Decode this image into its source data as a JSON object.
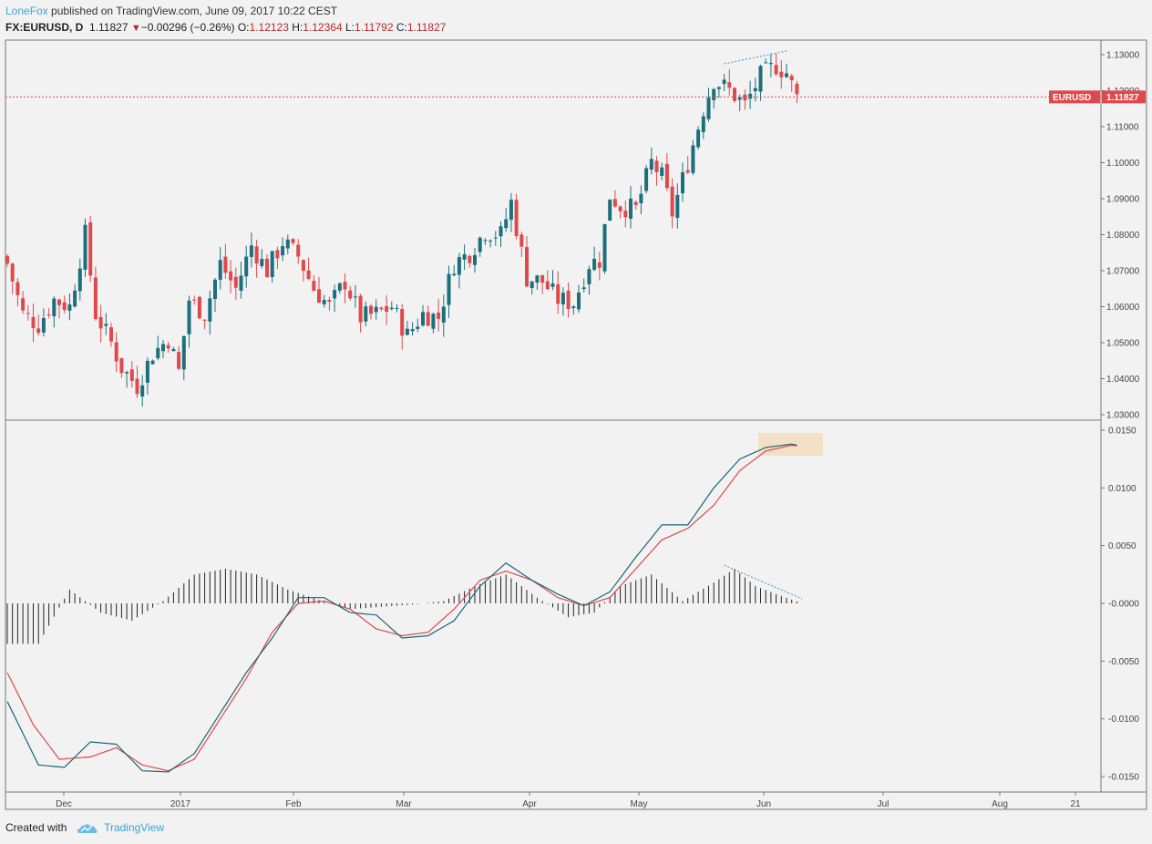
{
  "header": {
    "author": "LoneFox",
    "published_text": "published on TradingView.com, June 09, 2017 10:22 CEST",
    "symbol": "FX:EURUSD, D",
    "last": "1.11827",
    "change": "−0.00296 (−0.26%)",
    "open_label": "O:",
    "open": "1.12123",
    "high_label": "H:",
    "high": "1.12364",
    "low_label": "L:",
    "low": "1.11792",
    "close_label": "C:",
    "close": "1.11827"
  },
  "footer": {
    "created_with": "Created with",
    "brand": "TradingView"
  },
  "colors": {
    "up": "#1c6f7c",
    "down": "#e0494b",
    "macd": "#1b6677",
    "signal": "#e0494b",
    "price_line": "#e0494b",
    "highlight": "#f4dfc0",
    "trendline": "#3d8fc6"
  },
  "chart_data": [
    {
      "type": "candlestick",
      "symbol": "EURUSD",
      "last_price_label": "EURUSD",
      "last_price": "1.11827",
      "ylim": [
        1.03,
        1.132
      ],
      "y_ticks": [
        "1.13000",
        "1.12000",
        "1.11000",
        "1.10000",
        "1.09000",
        "1.08000",
        "1.07000",
        "1.06000",
        "1.05000",
        "1.04000",
        "1.03000"
      ],
      "x_ticks": [
        "Dec",
        "2017",
        "Feb",
        "Mar",
        "Apr",
        "May",
        "Jun",
        "Jul",
        "Aug",
        "21"
      ],
      "anchors": [
        {
          "i": 0,
          "c": 1.072
        },
        {
          "i": 3,
          "c": 1.058
        },
        {
          "i": 6,
          "c": 1.055
        },
        {
          "i": 9,
          "c": 1.062
        },
        {
          "i": 12,
          "c": 1.06
        },
        {
          "i": 15,
          "c": 1.08
        },
        {
          "i": 17,
          "c": 1.058
        },
        {
          "i": 20,
          "c": 1.05
        },
        {
          "i": 22,
          "c": 1.043
        },
        {
          "i": 25,
          "c": 1.038
        },
        {
          "i": 28,
          "c": 1.047
        },
        {
          "i": 31,
          "c": 1.051
        },
        {
          "i": 33,
          "c": 1.042
        },
        {
          "i": 35,
          "c": 1.062
        },
        {
          "i": 38,
          "c": 1.058
        },
        {
          "i": 41,
          "c": 1.072
        },
        {
          "i": 44,
          "c": 1.065
        },
        {
          "i": 47,
          "c": 1.077
        },
        {
          "i": 50,
          "c": 1.07
        },
        {
          "i": 53,
          "c": 1.078
        },
        {
          "i": 56,
          "c": 1.074
        },
        {
          "i": 59,
          "c": 1.065
        },
        {
          "i": 62,
          "c": 1.06
        },
        {
          "i": 65,
          "c": 1.067
        },
        {
          "i": 68,
          "c": 1.057
        },
        {
          "i": 71,
          "c": 1.058
        },
        {
          "i": 74,
          "c": 1.06
        },
        {
          "i": 77,
          "c": 1.052
        },
        {
          "i": 80,
          "c": 1.058
        },
        {
          "i": 83,
          "c": 1.057
        },
        {
          "i": 86,
          "c": 1.072
        },
        {
          "i": 89,
          "c": 1.075
        },
        {
          "i": 92,
          "c": 1.081
        },
        {
          "i": 95,
          "c": 1.08
        },
        {
          "i": 97,
          "c": 1.089
        },
        {
          "i": 100,
          "c": 1.068
        },
        {
          "i": 103,
          "c": 1.067
        },
        {
          "i": 106,
          "c": 1.062
        },
        {
          "i": 109,
          "c": 1.061
        },
        {
          "i": 112,
          "c": 1.072
        },
        {
          "i": 114,
          "c": 1.073
        },
        {
          "i": 116,
          "c": 1.091
        },
        {
          "i": 118,
          "c": 1.088
        },
        {
          "i": 121,
          "c": 1.087
        },
        {
          "i": 124,
          "c": 1.1
        },
        {
          "i": 126,
          "c": 1.096
        },
        {
          "i": 128,
          "c": 1.086
        },
        {
          "i": 131,
          "c": 1.1
        },
        {
          "i": 134,
          "c": 1.115
        },
        {
          "i": 136,
          "c": 1.123
        },
        {
          "i": 139,
          "c": 1.12
        },
        {
          "i": 142,
          "c": 1.116
        },
        {
          "i": 145,
          "c": 1.124
        },
        {
          "i": 148,
          "c": 1.127
        },
        {
          "i": 150,
          "c": 1.125
        },
        {
          "i": 152,
          "c": 1.118
        }
      ]
    },
    {
      "type": "macd",
      "ylim": [
        -0.0155,
        0.0155
      ],
      "y_ticks": [
        "0.0150",
        "0.0100",
        "0.0050",
        "-0.0000",
        "-0.0050",
        "-0.0100",
        "-0.0150"
      ],
      "macd_anchors": [
        [
          0,
          -0.0085
        ],
        [
          6,
          -0.014
        ],
        [
          11,
          -0.0142
        ],
        [
          16,
          -0.012
        ],
        [
          21,
          -0.0122
        ],
        [
          26,
          -0.0145
        ],
        [
          31,
          -0.0146
        ],
        [
          36,
          -0.013
        ],
        [
          41,
          -0.0095
        ],
        [
          46,
          -0.006
        ],
        [
          51,
          -0.003
        ],
        [
          56,
          0.0005
        ],
        [
          61,
          0.0005
        ],
        [
          66,
          -0.0008
        ],
        [
          71,
          -0.001
        ],
        [
          76,
          -0.003
        ],
        [
          81,
          -0.0028
        ],
        [
          86,
          -0.0015
        ],
        [
          91,
          0.0015
        ],
        [
          96,
          0.0035
        ],
        [
          101,
          0.002
        ],
        [
          106,
          0.0008
        ],
        [
          111,
          -0.0002
        ],
        [
          116,
          0.001
        ],
        [
          121,
          0.004
        ],
        [
          126,
          0.0068
        ],
        [
          131,
          0.0068
        ],
        [
          136,
          0.01
        ],
        [
          141,
          0.0125
        ],
        [
          146,
          0.0135
        ],
        [
          151,
          0.0138
        ],
        [
          153,
          0.0136
        ]
      ],
      "signal_anchors": [
        [
          0,
          -0.006
        ],
        [
          5,
          -0.0105
        ],
        [
          10,
          -0.0135
        ],
        [
          16,
          -0.0133
        ],
        [
          21,
          -0.0125
        ],
        [
          26,
          -0.014
        ],
        [
          31,
          -0.0145
        ],
        [
          36,
          -0.0135
        ],
        [
          41,
          -0.01
        ],
        [
          46,
          -0.0065
        ],
        [
          51,
          -0.0025
        ],
        [
          56,
          0.0
        ],
        [
          61,
          0.0002
        ],
        [
          66,
          -0.0005
        ],
        [
          71,
          -0.0022
        ],
        [
          76,
          -0.0028
        ],
        [
          81,
          -0.0025
        ],
        [
          86,
          -0.0005
        ],
        [
          91,
          0.002
        ],
        [
          96,
          0.0028
        ],
        [
          101,
          0.002
        ],
        [
          106,
          0.0005
        ],
        [
          111,
          -0.0002
        ],
        [
          116,
          0.0005
        ],
        [
          121,
          0.003
        ],
        [
          126,
          0.0055
        ],
        [
          131,
          0.0065
        ],
        [
          136,
          0.0085
        ],
        [
          141,
          0.0115
        ],
        [
          146,
          0.0132
        ],
        [
          151,
          0.0137
        ],
        [
          153,
          0.0136
        ]
      ],
      "hist_anchors": [
        [
          0,
          -0.0035
        ],
        [
          6,
          -0.0035
        ],
        [
          12,
          0.0012
        ],
        [
          18,
          -0.0008
        ],
        [
          24,
          -0.0015
        ],
        [
          30,
          0.0002
        ],
        [
          36,
          0.0025
        ],
        [
          42,
          0.003
        ],
        [
          48,
          0.0025
        ],
        [
          54,
          0.0012
        ],
        [
          60,
          0.0003
        ],
        [
          66,
          -0.0005
        ],
        [
          72,
          -0.0003
        ],
        [
          78,
          -0.0001
        ],
        [
          84,
          0.0002
        ],
        [
          90,
          0.0015
        ],
        [
          96,
          0.0025
        ],
        [
          102,
          0.0005
        ],
        [
          108,
          -0.0012
        ],
        [
          113,
          -0.0008
        ],
        [
          118,
          0.0015
        ],
        [
          124,
          0.0025
        ],
        [
          130,
          0.0002
        ],
        [
          136,
          0.0018
        ],
        [
          140,
          0.003
        ],
        [
          144,
          0.0015
        ],
        [
          148,
          0.0008
        ],
        [
          153,
          0.0
        ]
      ]
    }
  ]
}
